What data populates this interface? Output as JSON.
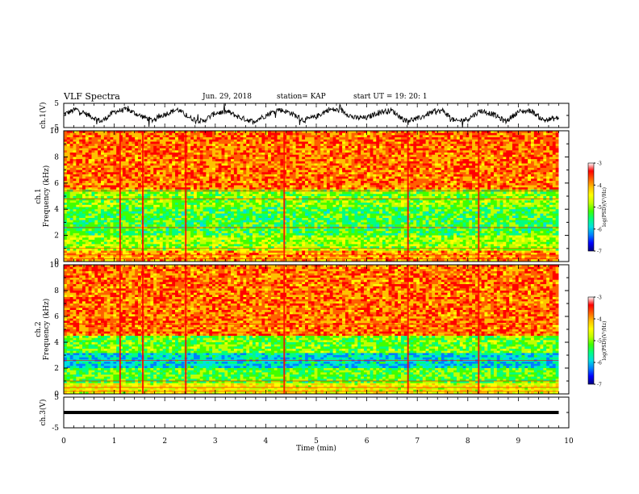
{
  "header": {
    "title": "VLF Spectra",
    "date": "Jun. 29, 2018",
    "station": "station= KAP",
    "start": "start UT =  19: 20: 1"
  },
  "colors": {
    "scale": [
      "#000080",
      "#0000ff",
      "#0080ff",
      "#00e0e0",
      "#00ff80",
      "#40ff00",
      "#c0ff00",
      "#ffff00",
      "#ffc000",
      "#ff6000",
      "#ff0000",
      "#ffffff"
    ]
  },
  "chart_data": [
    {
      "id": "ch1-waveform",
      "type": "line",
      "ylabel": "ch.1(V)",
      "ylim": [
        -5,
        5
      ],
      "yticks": [
        "5",
        "-5"
      ],
      "x": [
        0.0,
        0.25,
        0.5,
        0.75,
        1.0,
        1.25,
        1.5,
        1.75,
        2.0,
        2.25,
        2.5,
        2.75,
        3.0,
        3.25,
        3.5,
        3.75,
        4.0,
        4.25,
        4.5,
        4.75,
        5.0,
        5.25,
        5.5,
        5.75,
        6.0,
        6.25,
        6.5,
        6.75,
        7.0,
        7.25,
        7.5,
        7.75,
        8.0,
        8.25,
        8.5,
        8.75,
        9.0,
        9.25,
        9.5,
        9.8
      ],
      "values": [
        0.5,
        2.5,
        0.0,
        -2.5,
        1.5,
        2.5,
        0.0,
        -2.0,
        0.5,
        2.5,
        -1.0,
        -2.5,
        1.0,
        1.5,
        -1.0,
        -2.5,
        0.0,
        2.5,
        1.0,
        -2.0,
        -0.5,
        2.5,
        2.0,
        -1.0,
        -1.0,
        1.5,
        2.0,
        -2.0,
        -1.5,
        1.0,
        2.0,
        -2.5,
        -1.5,
        2.0,
        0.5,
        -2.5,
        1.5,
        2.0,
        -2.0,
        -1.0
      ]
    },
    {
      "id": "ch1-spectrogram",
      "type": "heatmap",
      "ylabel": "ch.1\nFrequency (kHz)",
      "ylim": [
        0,
        10
      ],
      "yticks": [
        "0",
        "2",
        "4",
        "6",
        "8",
        "10"
      ],
      "colorbar": {
        "label": "log(PSD)(V²/Hz)",
        "ticks": [
          "-3",
          "-4",
          "-5",
          "-6",
          "-7"
        ],
        "range": [
          -7,
          -3
        ]
      },
      "bands": [
        {
          "from_khz": 0.0,
          "to_khz": 0.8,
          "log_psd": -3.8
        },
        {
          "from_khz": 0.8,
          "to_khz": 2.0,
          "log_psd": -4.7
        },
        {
          "from_khz": 2.0,
          "to_khz": 4.2,
          "log_psd": -5.1
        },
        {
          "from_khz": 4.2,
          "to_khz": 5.5,
          "log_psd": -4.8
        },
        {
          "from_khz": 5.5,
          "to_khz": 10.0,
          "log_psd": -3.6
        }
      ],
      "impulses_min": [
        1.1,
        1.55,
        2.4,
        4.35,
        6.8,
        8.2
      ]
    },
    {
      "id": "ch2-spectrogram",
      "type": "heatmap",
      "ylabel": "ch.2\nFrequency (kHz)",
      "ylim": [
        0,
        10
      ],
      "yticks": [
        "0",
        "2",
        "4",
        "6",
        "8",
        "10"
      ],
      "colorbar": {
        "label": "log(PSD)(V²/Hz)",
        "ticks": [
          "-3",
          "-4",
          "-5",
          "-6",
          "-7"
        ],
        "range": [
          -7,
          -3
        ]
      },
      "bands": [
        {
          "from_khz": 0.0,
          "to_khz": 0.8,
          "log_psd": -4.3
        },
        {
          "from_khz": 0.8,
          "to_khz": 2.0,
          "log_psd": -5.0
        },
        {
          "from_khz": 2.0,
          "to_khz": 3.2,
          "log_psd": -5.7
        },
        {
          "from_khz": 3.2,
          "to_khz": 4.5,
          "log_psd": -4.9
        },
        {
          "from_khz": 4.5,
          "to_khz": 10.0,
          "log_psd": -3.6
        }
      ],
      "impulses_min": [
        1.1,
        1.55,
        2.4,
        4.35,
        6.8,
        8.2
      ]
    },
    {
      "id": "ch3-waveform",
      "type": "line",
      "ylabel": "ch.3(V)",
      "ylim": [
        -5,
        5
      ],
      "yticks": [
        "5",
        "-5"
      ],
      "x": [
        0.0,
        9.8
      ],
      "values": [
        0.0,
        0.0
      ]
    }
  ],
  "xaxis": {
    "label": "Time (min)",
    "ticks": [
      "0",
      "1",
      "2",
      "3",
      "4",
      "5",
      "6",
      "7",
      "8",
      "9",
      "10"
    ],
    "range": [
      0,
      10
    ]
  }
}
